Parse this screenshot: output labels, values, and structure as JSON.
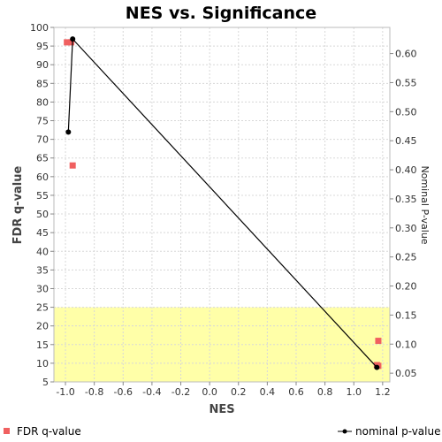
{
  "chart_data": {
    "type": "scatter",
    "title": "NES vs. Significance",
    "xlabel": "NES",
    "ylabel": "FDR q-value",
    "y2label": "Nominal P-value",
    "xlim": [
      -1.08,
      1.25
    ],
    "ylim": [
      5,
      100
    ],
    "y2lim": [
      0.035,
      0.645
    ],
    "x_ticks": [
      "-1.0",
      "-0.8",
      "-0.6",
      "-0.4",
      "-0.2",
      "0.0",
      "0.2",
      "0.4",
      "0.6",
      "0.8",
      "1.0",
      "1.2"
    ],
    "x_tick_values": [
      -1.0,
      -0.8,
      -0.6,
      -0.4,
      -0.2,
      0.0,
      0.2,
      0.4,
      0.6,
      0.8,
      1.0,
      1.2
    ],
    "y_ticks": [
      "5",
      "10",
      "15",
      "20",
      "25",
      "30",
      "35",
      "40",
      "45",
      "50",
      "55",
      "60",
      "65",
      "70",
      "75",
      "80",
      "85",
      "90",
      "95",
      "100"
    ],
    "y_tick_values": [
      5,
      10,
      15,
      20,
      25,
      30,
      35,
      40,
      45,
      50,
      55,
      60,
      65,
      70,
      75,
      80,
      85,
      90,
      95,
      100
    ],
    "y2_ticks": [
      "0.05",
      "0.10",
      "0.15",
      "0.20",
      "0.25",
      "0.30",
      "0.35",
      "0.40",
      "0.45",
      "0.50",
      "0.55",
      "0.60"
    ],
    "y2_tick_values": [
      0.05,
      0.1,
      0.15,
      0.2,
      0.25,
      0.3,
      0.35,
      0.4,
      0.45,
      0.5,
      0.55,
      0.6
    ],
    "grid": true,
    "highlight_band": {
      "axis": "y",
      "from": 5,
      "to": 25,
      "color": "#ffffa8"
    },
    "series": [
      {
        "name": "FDR q-value",
        "axis": "left",
        "marker": "square",
        "color": "#f06060",
        "points": [
          {
            "x": -0.99,
            "y": 96
          },
          {
            "x": -0.96,
            "y": 96
          },
          {
            "x": -0.95,
            "y": 63
          },
          {
            "x": 1.17,
            "y": 16
          },
          {
            "x": 1.16,
            "y": 9.5
          },
          {
            "x": 1.17,
            "y": 9.3
          }
        ]
      },
      {
        "name": "nominal p-value",
        "axis": "right",
        "marker": "circle",
        "line": true,
        "color": "#000000",
        "points": [
          {
            "x": -0.98,
            "y": 0.465
          },
          {
            "x": -0.95,
            "y": 0.625
          },
          {
            "x": 1.16,
            "y": 0.06
          }
        ]
      }
    ],
    "legend": [
      {
        "label": "FDR q-value",
        "position": "bottom-left"
      },
      {
        "label": "nominal p-value",
        "position": "bottom-right"
      }
    ]
  }
}
